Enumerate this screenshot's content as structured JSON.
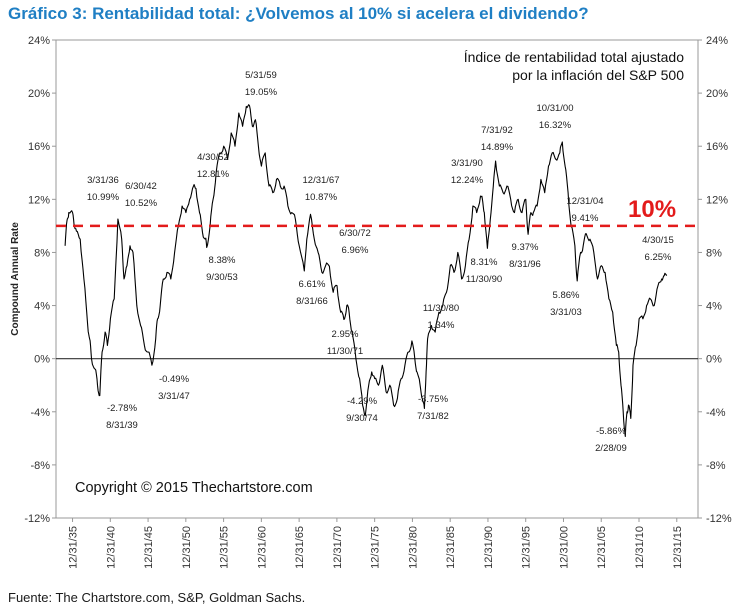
{
  "title": "Gráfico 3: Rentabilidad total: ¿Volvemos al 10% si acelera el dividendo?",
  "source": "Fuente: The Chartstore.com, S&P, Goldman Sachs.",
  "colors": {
    "title": "#1f7fc4",
    "series": "#000000",
    "reference": "#e31b1b"
  },
  "chart_data": {
    "type": "line",
    "legend_text": [
      "Índice de rentabilidad total ajustado",
      "por la inflación del S&P 500"
    ],
    "copyright": "Copyright © 2015 Thechartstore.com",
    "ylabel": "Compound Annual Rate",
    "xlim": [
      1933.8,
      2018.8
    ],
    "ylim": [
      -12,
      24
    ],
    "yticks": [
      "-12%",
      "-8%",
      "-4%",
      "0%",
      "4%",
      "8%",
      "12%",
      "16%",
      "20%",
      "24%"
    ],
    "ytick_values": [
      -12,
      -8,
      -4,
      0,
      4,
      8,
      12,
      16,
      20,
      24
    ],
    "xticks": [
      "12/31/35",
      "12/31/40",
      "12/31/45",
      "12/31/50",
      "12/31/55",
      "12/31/60",
      "12/31/65",
      "12/31/70",
      "12/31/75",
      "12/31/80",
      "12/31/85",
      "12/31/90",
      "12/31/95",
      "12/31/00",
      "12/31/05",
      "12/31/10",
      "12/31/15"
    ],
    "xtick_values": [
      1935.99,
      1940.99,
      1945.99,
      1950.99,
      1955.99,
      1960.99,
      1965.99,
      1970.99,
      1975.99,
      1980.99,
      1985.99,
      1990.99,
      1995.99,
      2000.99,
      2005.99,
      2010.99,
      2015.99
    ],
    "reference_line": {
      "value": 10,
      "label": "10%"
    },
    "series": [
      {
        "x": [
          1935.0,
          1935.25,
          1935.5,
          1936.0,
          1936.25,
          1936.5,
          1937.0,
          1937.5,
          1938.0,
          1938.25,
          1938.5,
          1939.0,
          1939.3,
          1939.6,
          1939.9,
          1940.3,
          1940.6,
          1941.0,
          1941.5,
          1942.0,
          1942.5,
          1942.8,
          1943.2,
          1943.6,
          1944.0,
          1944.5,
          1945.0,
          1945.5,
          1946.0,
          1946.5,
          1947.0,
          1947.25,
          1947.6,
          1948.0,
          1948.5,
          1949.0,
          1949.5,
          1950.0,
          1950.5,
          1951.0,
          1951.5,
          1952.0,
          1952.33,
          1952.8,
          1953.2,
          1953.6,
          1953.75,
          1954.2,
          1954.6,
          1955.0,
          1955.5,
          1956.0,
          1956.5,
          1957.0,
          1957.5,
          1958.0,
          1958.5,
          1959.0,
          1959.42,
          1959.8,
          1960.2,
          1960.6,
          1961.0,
          1961.5,
          1962.0,
          1962.5,
          1963.0,
          1963.5,
          1964.0,
          1964.5,
          1965.0,
          1965.5,
          1966.0,
          1966.67,
          1967.0,
          1967.5,
          1968.0,
          1968.5,
          1969.0,
          1969.5,
          1970.0,
          1970.5,
          1971.0,
          1971.5,
          1971.92,
          1972.3,
          1972.6,
          1973.0,
          1973.5,
          1974.0,
          1974.4,
          1974.75,
          1975.2,
          1975.6,
          1976.0,
          1976.5,
          1977.0,
          1977.5,
          1978.0,
          1978.5,
          1979.0,
          1979.5,
          1980.0,
          1980.5,
          1980.92,
          1981.3,
          1981.6,
          1982.0,
          1982.3,
          1982.58,
          1982.8,
          1983.0,
          1983.5,
          1984.0,
          1984.5,
          1985.0,
          1985.5,
          1986.0,
          1986.5,
          1987.0,
          1987.5,
          1988.0,
          1988.5,
          1989.0,
          1989.5,
          1990.0,
          1990.25,
          1990.5,
          1990.92,
          1991.3,
          1991.7,
          1992.0,
          1992.5,
          1993.0,
          1993.5,
          1994.0,
          1994.5,
          1995.0,
          1995.5,
          1996.0,
          1996.3,
          1996.67,
          1997.0,
          1997.5,
          1998.0,
          1998.5,
          1999.0,
          1999.5,
          2000.0,
          2000.5,
          2000.83,
          2001.2,
          2001.6,
          2002.0,
          2002.5,
          2002.8,
          2003.25,
          2003.6,
          2004.0,
          2004.5,
          2005.0,
          2005.5,
          2006.0,
          2006.5,
          2007.0,
          2007.5,
          2008.0,
          2008.3,
          2008.6,
          2008.9,
          2009.17,
          2009.4,
          2009.6,
          2009.9,
          2010.2,
          2010.6,
          2011.0,
          2011.5,
          2012.0,
          2012.5,
          2013.0,
          2013.5,
          2014.0,
          2014.33,
          2014.7
        ],
        "y": [
          8.5,
          10.4,
          11.0,
          10.99,
          10.0,
          9.6,
          9.0,
          6.0,
          2.5,
          1.5,
          0.0,
          -0.8,
          -2.0,
          -2.78,
          0.5,
          2.0,
          1.0,
          3.0,
          4.5,
          10.52,
          9.0,
          6.0,
          7.0,
          8.5,
          8.0,
          4.0,
          2.5,
          1.0,
          0.5,
          -0.49,
          1.5,
          3.0,
          4.0,
          6.0,
          6.5,
          6.0,
          8.0,
          10.0,
          11.5,
          11.0,
          12.0,
          13.0,
          12.81,
          11.0,
          9.5,
          9.0,
          8.38,
          10.0,
          12.0,
          14.0,
          15.5,
          16.0,
          15.0,
          17.0,
          16.0,
          18.5,
          17.5,
          19.0,
          19.05,
          17.5,
          18.0,
          16.0,
          14.5,
          15.5,
          13.0,
          12.5,
          13.5,
          13.0,
          13.0,
          11.5,
          11.0,
          10.5,
          8.5,
          6.61,
          9.0,
          10.87,
          9.0,
          8.0,
          6.5,
          7.0,
          6.96,
          5.0,
          5.5,
          3.5,
          2.95,
          4.0,
          3.5,
          2.0,
          0.0,
          -1.5,
          -3.5,
          -4.29,
          -2.0,
          -1.0,
          -1.5,
          -2.0,
          -0.5,
          -2.5,
          -2.0,
          -3.5,
          -3.0,
          -1.5,
          -0.5,
          0.5,
          1.34,
          0.0,
          -1.0,
          -2.0,
          -3.0,
          -3.75,
          -1.0,
          1.5,
          2.5,
          2.0,
          3.5,
          4.0,
          5.0,
          7.0,
          6.5,
          8.0,
          6.0,
          7.0,
          9.0,
          11.5,
          11.0,
          12.24,
          12.0,
          11.0,
          8.31,
          10.5,
          13.0,
          14.89,
          13.0,
          12.5,
          13.0,
          12.0,
          11.0,
          12.0,
          11.0,
          12.0,
          9.37,
          11.0,
          11.0,
          11.5,
          13.5,
          12.5,
          14.5,
          15.5,
          15.0,
          15.5,
          16.32,
          14.5,
          12.5,
          10.0,
          8.5,
          5.86,
          8.0,
          8.5,
          9.41,
          9.0,
          8.0,
          6.0,
          7.0,
          6.5,
          4.5,
          3.5,
          1.0,
          0.5,
          -2.0,
          -4.0,
          -5.86,
          -4.0,
          -3.5,
          -4.5,
          -0.5,
          1.0,
          3.0,
          3.0,
          4.0,
          4.5,
          4.0,
          5.5,
          6.0,
          6.25,
          6.3
        ]
      }
    ],
    "annotations": [
      {
        "date": "3/31/36",
        "value": "10.99%"
      },
      {
        "date": "6/30/42",
        "value": "10.52%"
      },
      {
        "date": "8/31/39",
        "value": "-2.78%"
      },
      {
        "date": "3/31/47",
        "value": "-0.49%"
      },
      {
        "date": "4/30/52",
        "value": "12.81%"
      },
      {
        "date": "9/30/53",
        "value": "8.38%"
      },
      {
        "date": "5/31/59",
        "value": "19.05%"
      },
      {
        "date": "12/31/67",
        "value": "10.87%"
      },
      {
        "date": "8/31/66",
        "value": "6.61%"
      },
      {
        "date": "6/30/72",
        "value": "6.96%"
      },
      {
        "date": "11/30/71",
        "value": "2.95%"
      },
      {
        "date": "9/30/74",
        "value": "-4.29%"
      },
      {
        "date": "11/30/80",
        "value": "1.34%"
      },
      {
        "date": "7/31/82",
        "value": "-3.75%"
      },
      {
        "date": "3/31/90",
        "value": "12.24%"
      },
      {
        "date": "7/31/92",
        "value": "14.89%"
      },
      {
        "date": "11/30/90",
        "value": "8.31%"
      },
      {
        "date": "8/31/96",
        "value": "9.37%"
      },
      {
        "date": "10/31/00",
        "value": "16.32%"
      },
      {
        "date": "12/31/04",
        "value": "9.41%"
      },
      {
        "date": "3/31/03",
        "value": "5.86%"
      },
      {
        "date": "4/30/15",
        "value": "6.25%"
      },
      {
        "date": "2/28/09",
        "value": "-5.86%"
      }
    ]
  }
}
